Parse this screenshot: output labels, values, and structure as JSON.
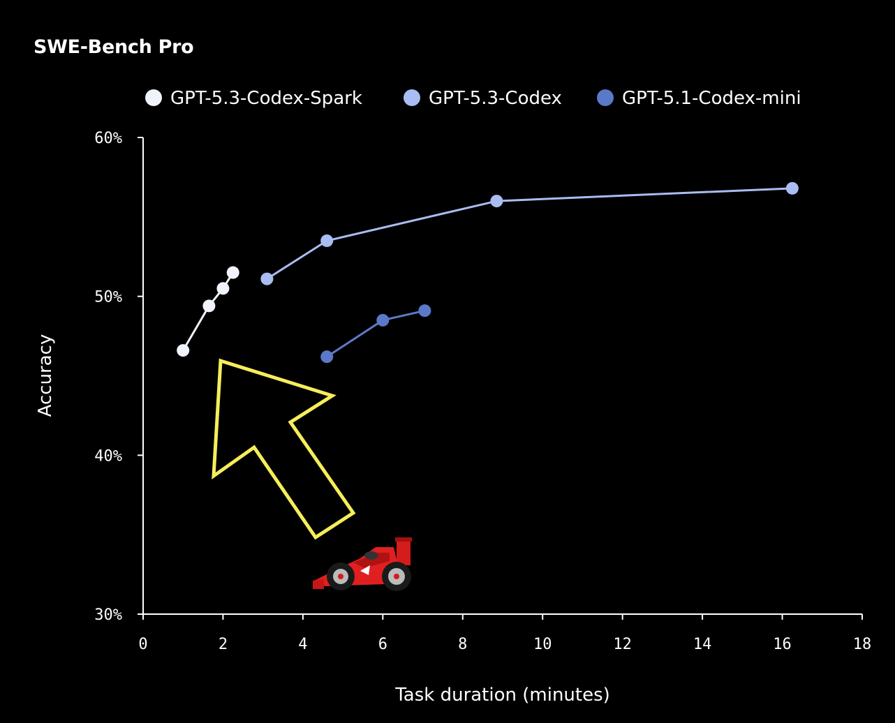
{
  "chart_data": {
    "type": "line",
    "title": "SWE-Bench Pro",
    "xlabel": "Task duration (minutes)",
    "ylabel": "Accuracy",
    "xlim": [
      0,
      18
    ],
    "ylim": [
      30,
      60
    ],
    "xticks": [
      "0",
      "2",
      "4",
      "6",
      "8",
      "10",
      "12",
      "14",
      "16",
      "18"
    ],
    "yticks": [
      "30%",
      "40%",
      "50%",
      "60%"
    ],
    "legend_position": "top",
    "series": [
      {
        "name": "GPT-5.3-Codex-Spark",
        "color": "#f0f3fb",
        "points": [
          [
            1.0,
            46.6
          ],
          [
            1.65,
            49.4
          ],
          [
            2.0,
            50.5
          ],
          [
            2.25,
            51.5
          ]
        ]
      },
      {
        "name": "GPT-5.3-Codex",
        "color": "#a9bdf2",
        "points": [
          [
            3.1,
            51.1
          ],
          [
            4.6,
            53.5
          ],
          [
            8.85,
            56.0
          ],
          [
            16.25,
            56.8
          ]
        ]
      },
      {
        "name": "GPT-5.1-Codex-mini",
        "color": "#5b79c9",
        "points": [
          [
            4.6,
            46.2
          ],
          [
            6.0,
            48.5
          ],
          [
            7.05,
            49.1
          ]
        ]
      }
    ],
    "annotations": [
      {
        "type": "arrow",
        "color": "#f5ee5a",
        "description": "outlined arrow pointing up-left toward GPT-5.3-Codex-Spark points"
      },
      {
        "type": "icon",
        "name": "race-car-icon"
      }
    ]
  }
}
